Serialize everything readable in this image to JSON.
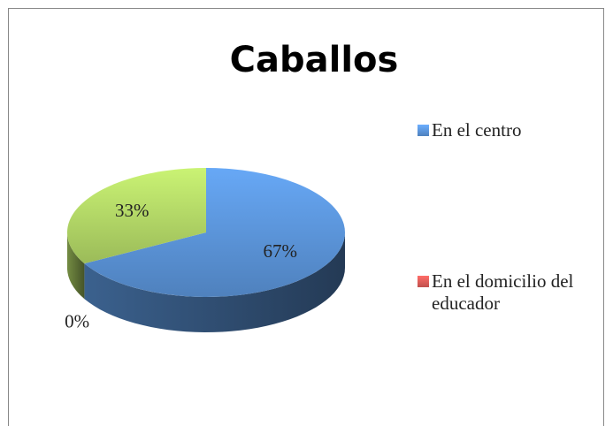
{
  "chart_data": {
    "type": "pie3d",
    "title": "Caballos",
    "categories": [
      "En el centro",
      "En el domicilio del educador",
      null
    ],
    "values": [
      67,
      0,
      33
    ],
    "value_labels": [
      "67%",
      "0%",
      "33%"
    ],
    "colors": [
      "#4f81bd",
      "#c0504d",
      "#9bbb59"
    ],
    "legend": "right"
  }
}
